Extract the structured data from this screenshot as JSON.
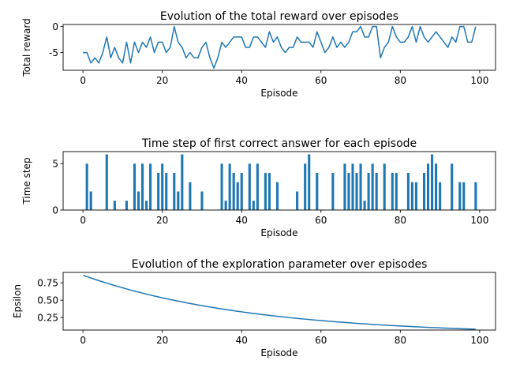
{
  "chart_data": [
    {
      "type": "line",
      "title": "Evolution of the total reward over episodes",
      "xlabel": "Episode",
      "ylabel": "Total reward",
      "xlim": [
        -5,
        104
      ],
      "ylim": [
        -8.4,
        0.4
      ],
      "xticks": [
        0,
        20,
        40,
        60,
        80,
        100
      ],
      "yticks": [
        0,
        -5
      ],
      "color": "#1f77b4",
      "x": [
        0,
        1,
        2,
        3,
        4,
        5,
        6,
        7,
        8,
        9,
        10,
        11,
        12,
        13,
        14,
        15,
        16,
        17,
        18,
        19,
        20,
        21,
        22,
        23,
        24,
        25,
        26,
        27,
        28,
        29,
        30,
        31,
        32,
        33,
        34,
        35,
        36,
        37,
        38,
        39,
        40,
        41,
        42,
        43,
        44,
        45,
        46,
        47,
        48,
        49,
        50,
        51,
        52,
        53,
        54,
        55,
        56,
        57,
        58,
        59,
        60,
        61,
        62,
        63,
        64,
        65,
        66,
        67,
        68,
        69,
        70,
        71,
        72,
        73,
        74,
        75,
        76,
        77,
        78,
        79,
        80,
        81,
        82,
        83,
        84,
        85,
        86,
        87,
        88,
        89,
        90,
        91,
        92,
        93,
        94,
        95,
        96,
        97,
        98,
        99
      ],
      "values": [
        -5,
        -5,
        -7,
        -6,
        -7,
        -5,
        -2,
        -6,
        -4,
        -6,
        -7,
        -3,
        -7,
        -3,
        -5,
        -3,
        -4,
        -2,
        -5,
        -3,
        -3,
        -5,
        -4,
        0,
        -3,
        -4,
        -6,
        -5,
        -6,
        -6,
        -4,
        -3,
        -6,
        -8,
        -6,
        -3,
        -4,
        -3,
        -2,
        -2,
        -2,
        -4,
        -4,
        -2,
        -2,
        -3,
        -4,
        -1,
        -3,
        -2,
        -4,
        -5,
        -4,
        -4,
        -2,
        -3,
        -3,
        -3,
        -4,
        -1,
        -3,
        -5,
        -4,
        -2,
        -4,
        -3,
        -4,
        -3,
        -1,
        -1,
        0,
        -2,
        -2,
        0,
        0,
        -6,
        -4,
        -3,
        0,
        -2,
        -3,
        -3,
        -2,
        0,
        -3,
        0,
        -2,
        -3,
        -2,
        -1,
        -2,
        -3,
        -4,
        -2,
        -3,
        0,
        0,
        -3,
        -3,
        0
      ]
    },
    {
      "type": "bar",
      "title": "Time step of first correct answer for each episode",
      "xlabel": "Episode",
      "ylabel": "Time step",
      "xlim": [
        -5,
        104
      ],
      "ylim": [
        0,
        6.3
      ],
      "xticks": [
        0,
        20,
        40,
        60,
        80,
        100
      ],
      "yticks": [
        0,
        5
      ],
      "color": "#1f77b4",
      "x": [
        1,
        2,
        6,
        8,
        11,
        13,
        14,
        15,
        16,
        17,
        19,
        20,
        21,
        23,
        24,
        25,
        27,
        30,
        35,
        36,
        37,
        38,
        39,
        40,
        42,
        43,
        44,
        46,
        47,
        49,
        54,
        56,
        57,
        59,
        63,
        66,
        67,
        68,
        69,
        70,
        71,
        72,
        73,
        74,
        76,
        78,
        79,
        82,
        83,
        84,
        86,
        87,
        88,
        89,
        90,
        93,
        95,
        96,
        99
      ],
      "values": [
        5,
        2,
        6,
        1,
        1,
        5,
        2,
        5,
        1,
        5,
        4,
        5,
        4,
        4,
        2,
        6,
        3,
        2,
        5,
        1,
        5,
        4,
        3,
        4,
        5,
        1,
        5,
        4,
        4,
        3,
        2,
        5,
        6,
        4,
        4,
        5,
        4,
        5,
        4,
        5,
        1,
        4,
        5,
        4,
        5,
        4,
        4,
        4,
        3,
        3,
        4,
        5,
        6,
        5,
        3,
        5,
        3,
        3,
        3
      ]
    },
    {
      "type": "line",
      "title": "Evolution of the exploration parameter over episodes",
      "xlabel": "Episode",
      "ylabel": "Epsilon",
      "xlim": [
        -5,
        104
      ],
      "ylim": [
        0.07,
        0.9
      ],
      "xticks": [
        0,
        20,
        40,
        60,
        80,
        100
      ],
      "yticks": [
        0.25,
        0.5,
        0.75
      ],
      "ytick_labels": [
        "0.25",
        "0.50",
        "0.75"
      ],
      "color": "#1f77b4",
      "x_start": 0,
      "x_end": 99,
      "epsilon_start": 0.86,
      "epsilon_min": 0.05,
      "decay_per_episode": 0.9765
    }
  ]
}
